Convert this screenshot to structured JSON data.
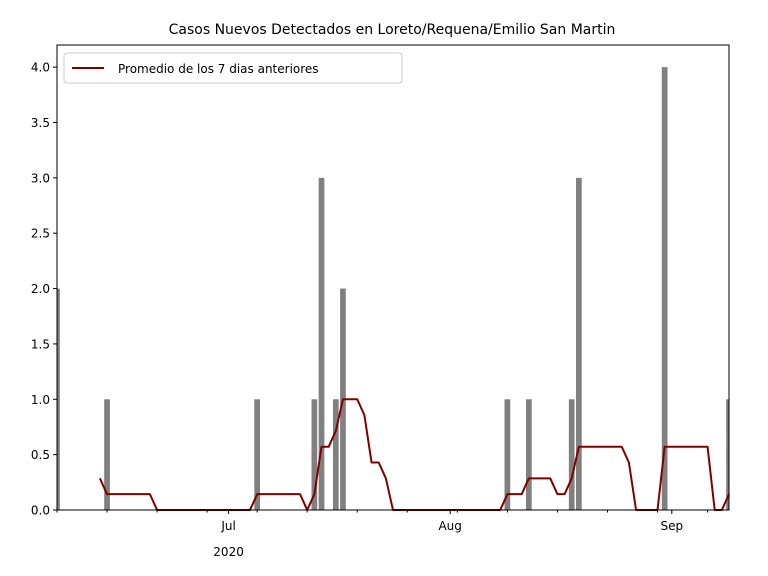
{
  "chart_data": {
    "type": "bar",
    "title": "Casos Nuevos Detectados en Loreto/Requena/Emilio San Martin",
    "xlabel": "",
    "ylabel": "",
    "x_range": [
      "2020-06-07",
      "2020-09-09"
    ],
    "ylim": [
      0,
      4.2
    ],
    "y_ticks": [
      {
        "value": 0.0,
        "label": "0.0"
      },
      {
        "value": 0.5,
        "label": "0.5"
      },
      {
        "value": 1.0,
        "label": "1.0"
      },
      {
        "value": 1.5,
        "label": "1.5"
      },
      {
        "value": 2.0,
        "label": "2.0"
      },
      {
        "value": 2.5,
        "label": "2.5"
      },
      {
        "value": 3.0,
        "label": "3.0"
      },
      {
        "value": 3.5,
        "label": "3.5"
      },
      {
        "value": 4.0,
        "label": "4.0"
      }
    ],
    "x_ticks": [
      {
        "date": "2020-07-01",
        "label": "Jul",
        "sublabel": "2020"
      },
      {
        "date": "2020-08-01",
        "label": "Aug",
        "sublabel": ""
      },
      {
        "date": "2020-09-01",
        "label": "Sep",
        "sublabel": ""
      }
    ],
    "grid": false,
    "legend_position": "upper-left",
    "series": [
      {
        "kind": "bar",
        "color": "#808080",
        "points": [
          {
            "date": "2020-06-07",
            "value": 2
          },
          {
            "date": "2020-06-14",
            "value": 1
          },
          {
            "date": "2020-07-05",
            "value": 1
          },
          {
            "date": "2020-07-13",
            "value": 1
          },
          {
            "date": "2020-07-14",
            "value": 3
          },
          {
            "date": "2020-07-16",
            "value": 1
          },
          {
            "date": "2020-07-17",
            "value": 2
          },
          {
            "date": "2020-08-09",
            "value": 1
          },
          {
            "date": "2020-08-12",
            "value": 1
          },
          {
            "date": "2020-08-18",
            "value": 1
          },
          {
            "date": "2020-08-19",
            "value": 3
          },
          {
            "date": "2020-08-31",
            "value": 4
          },
          {
            "date": "2020-09-09",
            "value": 1
          }
        ]
      },
      {
        "kind": "line",
        "name": "Promedio de los 7 dias anteriores",
        "color": "#800000",
        "points": [
          {
            "date": "2020-06-13",
            "value": 0.286
          },
          {
            "date": "2020-06-14",
            "value": 0.143
          },
          {
            "date": "2020-06-20",
            "value": 0.143
          },
          {
            "date": "2020-06-21",
            "value": 0.0
          },
          {
            "date": "2020-07-04",
            "value": 0.0
          },
          {
            "date": "2020-07-05",
            "value": 0.143
          },
          {
            "date": "2020-07-11",
            "value": 0.143
          },
          {
            "date": "2020-07-12",
            "value": 0.0
          },
          {
            "date": "2020-07-13",
            "value": 0.143
          },
          {
            "date": "2020-07-14",
            "value": 0.571
          },
          {
            "date": "2020-07-15",
            "value": 0.571
          },
          {
            "date": "2020-07-16",
            "value": 0.714
          },
          {
            "date": "2020-07-17",
            "value": 1.0
          },
          {
            "date": "2020-07-19",
            "value": 1.0
          },
          {
            "date": "2020-07-20",
            "value": 0.857
          },
          {
            "date": "2020-07-21",
            "value": 0.429
          },
          {
            "date": "2020-07-22",
            "value": 0.429
          },
          {
            "date": "2020-07-23",
            "value": 0.286
          },
          {
            "date": "2020-07-24",
            "value": 0.0
          },
          {
            "date": "2020-08-08",
            "value": 0.0
          },
          {
            "date": "2020-08-09",
            "value": 0.143
          },
          {
            "date": "2020-08-11",
            "value": 0.143
          },
          {
            "date": "2020-08-12",
            "value": 0.286
          },
          {
            "date": "2020-08-15",
            "value": 0.286
          },
          {
            "date": "2020-08-16",
            "value": 0.143
          },
          {
            "date": "2020-08-17",
            "value": 0.143
          },
          {
            "date": "2020-08-18",
            "value": 0.286
          },
          {
            "date": "2020-08-19",
            "value": 0.571
          },
          {
            "date": "2020-08-25",
            "value": 0.571
          },
          {
            "date": "2020-08-26",
            "value": 0.429
          },
          {
            "date": "2020-08-27",
            "value": 0.0
          },
          {
            "date": "2020-08-30",
            "value": 0.0
          },
          {
            "date": "2020-08-31",
            "value": 0.571
          },
          {
            "date": "2020-09-06",
            "value": 0.571
          },
          {
            "date": "2020-09-07",
            "value": 0.0
          },
          {
            "date": "2020-09-08",
            "value": 0.0
          },
          {
            "date": "2020-09-09",
            "value": 0.143
          }
        ]
      }
    ]
  }
}
